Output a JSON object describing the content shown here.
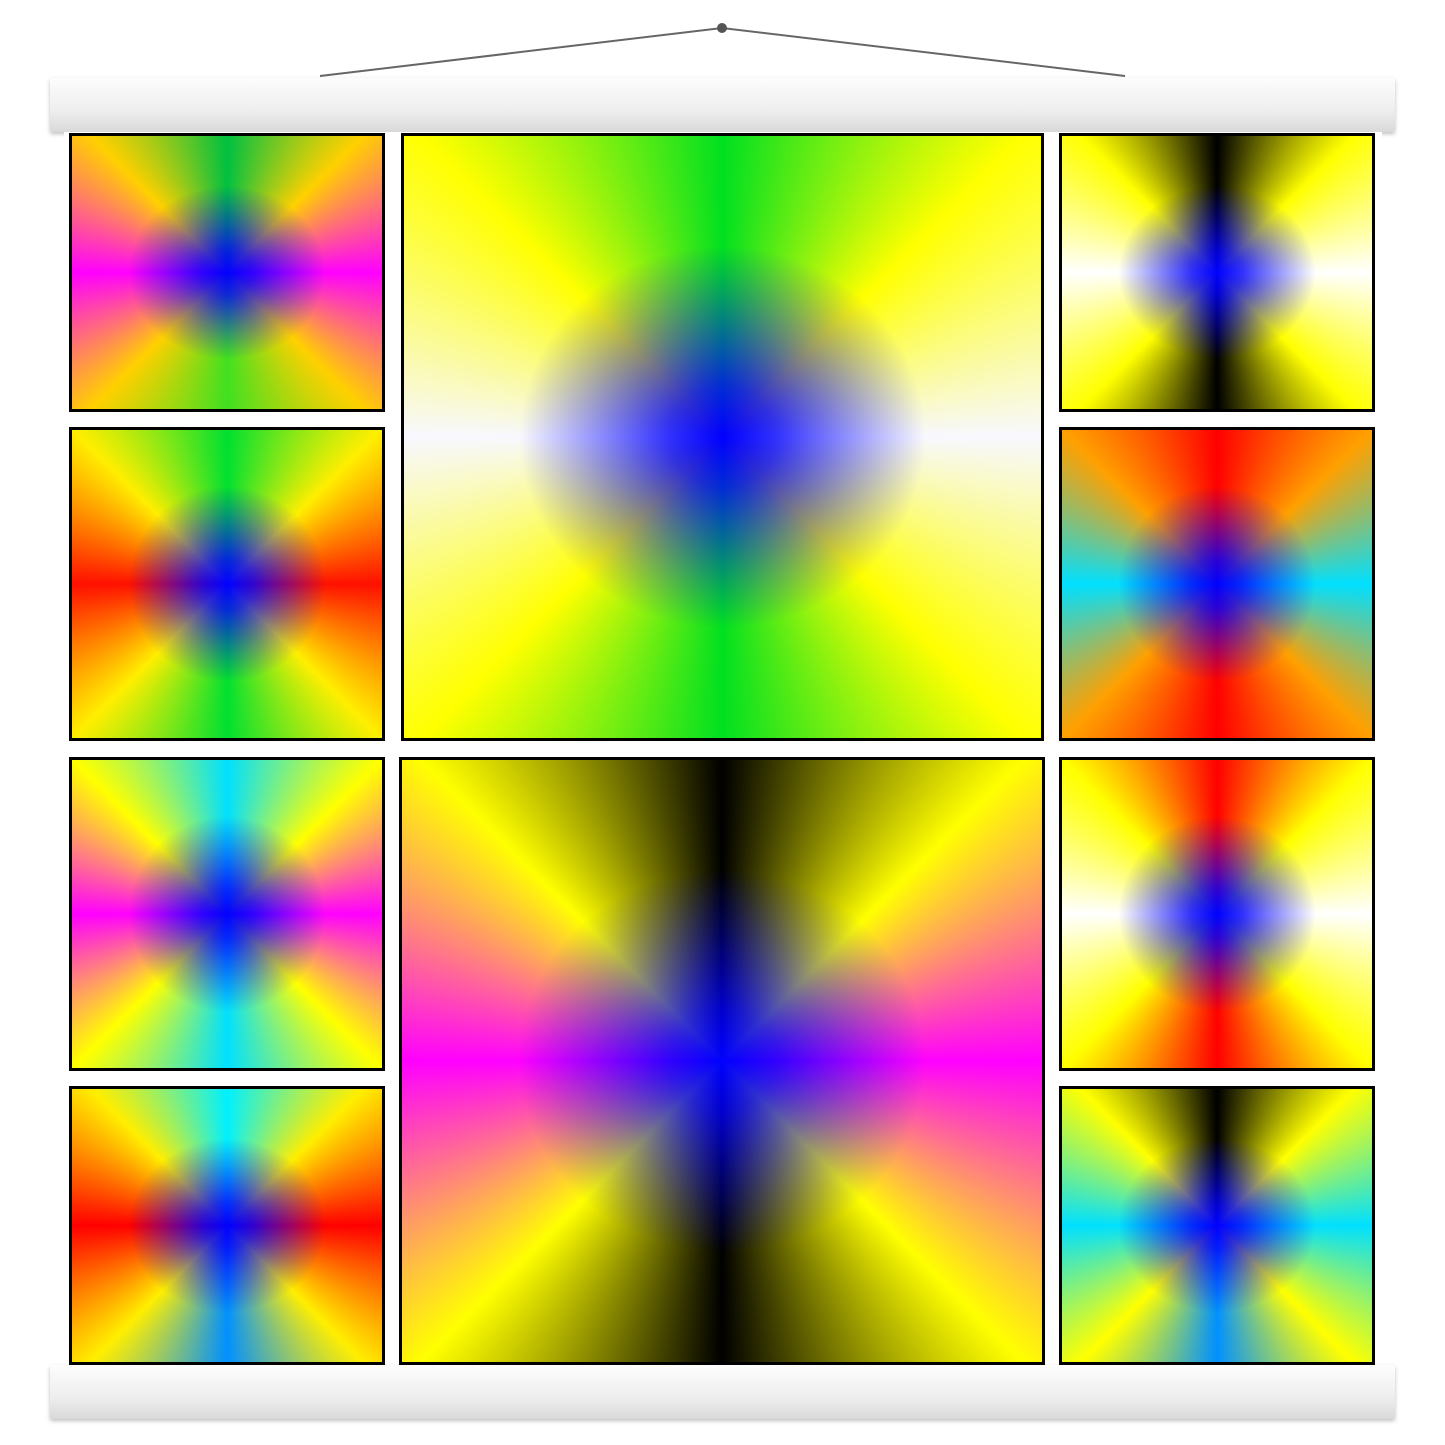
{
  "artwork": {
    "hanger": {
      "bar_color": "#f2f2f2",
      "string_color": "#666666"
    },
    "tiles": [
      {
        "id": "left-1",
        "center": "#0000ff",
        "top": "#00c040",
        "right": "#ff00ff",
        "bottom": "#40e020",
        "left": "#ff00ff",
        "corner": "#ffd000"
      },
      {
        "id": "left-2",
        "center": "#0000ff",
        "top": "#00e030",
        "right": "#ff1000",
        "bottom": "#00e030",
        "left": "#ff1000",
        "corner": "#ffee00"
      },
      {
        "id": "left-3",
        "center": "#0000ff",
        "top": "#00e0ff",
        "right": "#ff00ff",
        "bottom": "#00e0ff",
        "left": "#ff00ff",
        "corner": "#ffff00"
      },
      {
        "id": "left-4",
        "center": "#0000ff",
        "top": "#00f0ff",
        "right": "#ff0000",
        "bottom": "#0090ff",
        "left": "#ff0000",
        "corner": "#ffee00"
      },
      {
        "id": "center-1",
        "center": "#0000ff",
        "top": "#00e020",
        "right": "#f8f8ff",
        "bottom": "#00e020",
        "left": "#f8f8ff",
        "corner": "#ffff00"
      },
      {
        "id": "center-2",
        "center": "#0000ff",
        "top": "#000000",
        "right": "#ff00ff",
        "bottom": "#000000",
        "left": "#ff00ff",
        "corner": "#ffff00"
      },
      {
        "id": "right-1",
        "center": "#0000ff",
        "top": "#000000",
        "right": "#ffffff",
        "bottom": "#000000",
        "left": "#ffffff",
        "corner": "#ffff00"
      },
      {
        "id": "right-2",
        "center": "#0000ff",
        "top": "#ff0000",
        "right": "#00e0ff",
        "bottom": "#ff0000",
        "left": "#00e0ff",
        "corner": "#ffa000"
      },
      {
        "id": "right-3",
        "center": "#0000ff",
        "top": "#ff0000",
        "right": "#ffffff",
        "bottom": "#ff0000",
        "left": "#ffffff",
        "corner": "#ffff00"
      },
      {
        "id": "right-4",
        "center": "#0000ff",
        "top": "#000000",
        "right": "#00e0ff",
        "bottom": "#0090ff",
        "left": "#00e0ff",
        "corner": "#ffff00"
      }
    ]
  }
}
